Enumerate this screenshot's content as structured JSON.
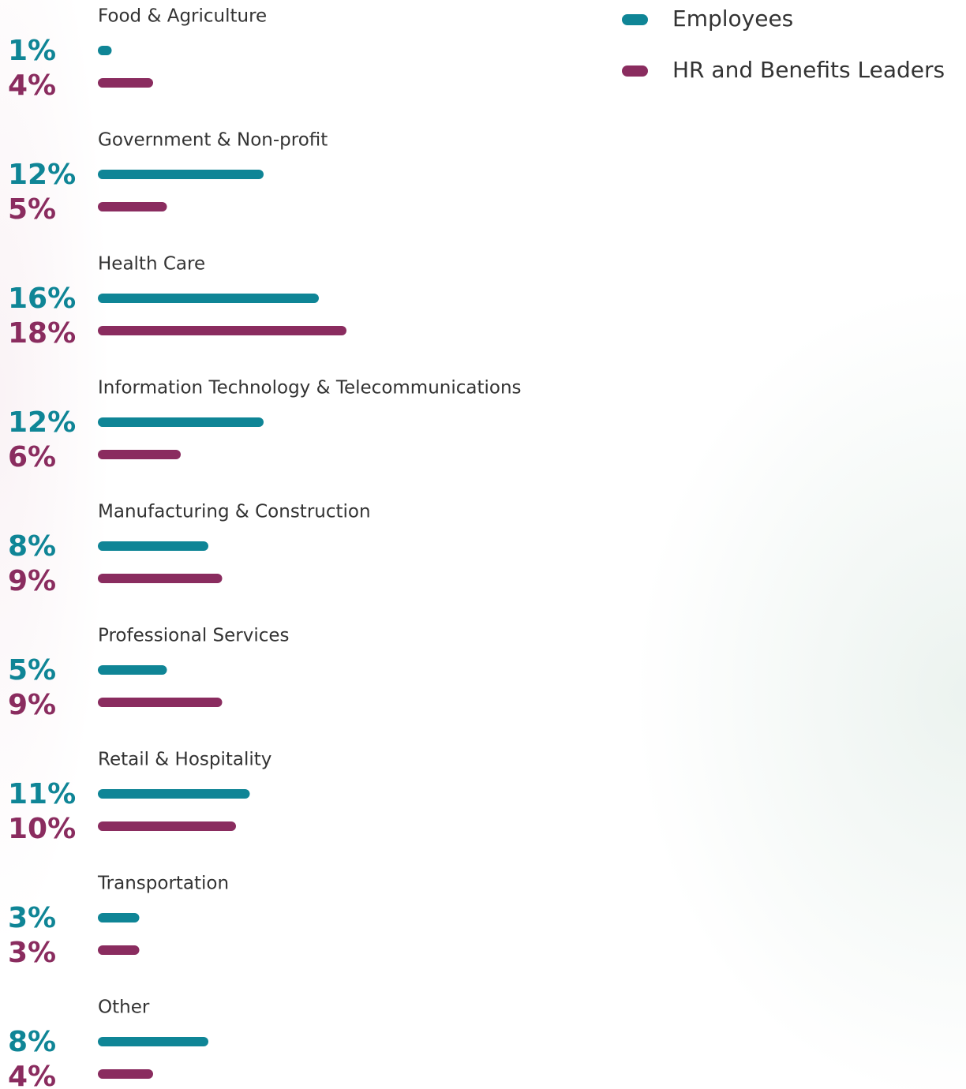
{
  "chart_data": {
    "type": "bar",
    "orientation": "horizontal",
    "categories": [
      "Food & Agriculture",
      "Government & Non-profit",
      "Health Care",
      "Information Technology & Telecommunications",
      "Manufacturing & Construction",
      "Professional Services",
      "Retail & Hospitality",
      "Transportation",
      "Other"
    ],
    "series": [
      {
        "name": "Employees",
        "color": "#0f8596",
        "values": [
          1,
          12,
          16,
          12,
          8,
          5,
          11,
          3,
          8
        ],
        "value_labels": [
          "1%",
          "12%",
          "16%",
          "12%",
          "8%",
          "5%",
          "11%",
          "3%",
          "8%"
        ]
      },
      {
        "name": "HR and Benefits Leaders",
        "color": "#8a2c5f",
        "values": [
          4,
          5,
          18,
          6,
          9,
          9,
          10,
          3,
          4
        ],
        "value_labels": [
          "4%",
          "5%",
          "18%",
          "6%",
          "9%",
          "9%",
          "10%",
          "3%",
          "4%"
        ]
      }
    ],
    "legend": "top-right"
  }
}
